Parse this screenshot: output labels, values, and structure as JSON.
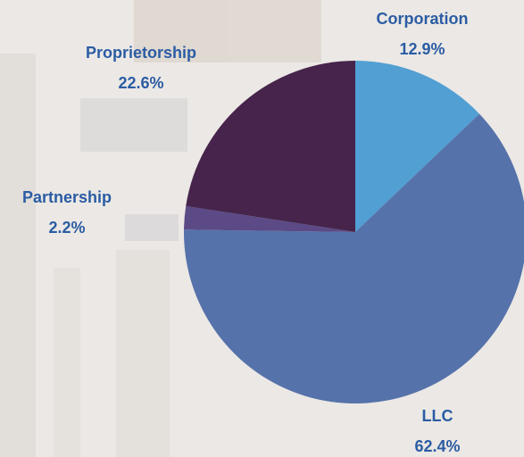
{
  "chart_data": {
    "type": "pie",
    "categories": [
      "Corporation",
      "LLC",
      "Partnership",
      "Proprietorship"
    ],
    "values": [
      12.9,
      62.4,
      2.2,
      22.6
    ],
    "value_labels": [
      "12.9%",
      "62.4%",
      "2.2%",
      "22.6%"
    ],
    "colors": [
      "#519fd3",
      "#5672aa",
      "#5b4a86",
      "#46244b"
    ]
  }
}
